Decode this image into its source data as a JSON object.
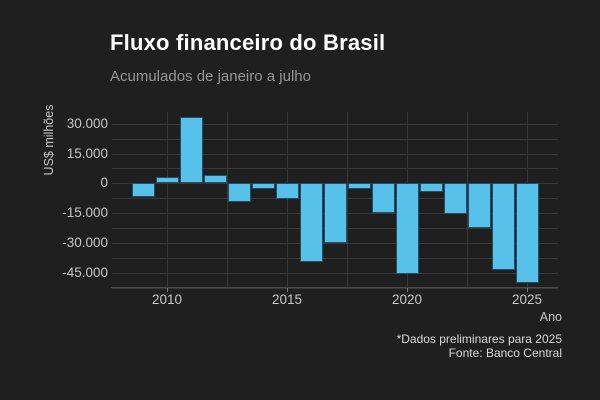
{
  "header": {
    "title": "Fluxo financeiro do Brasil",
    "subtitle": "Acumulados de janeiro a julho"
  },
  "footer": {
    "note": "*Dados preliminares para 2025",
    "source": "Fonte: Banco Central"
  },
  "chart_data": {
    "type": "bar",
    "title": "Fluxo financeiro do Brasil",
    "subtitle": "Acumulados de janeiro a julho",
    "xlabel": "Ano",
    "ylabel": "US$ milhões",
    "x": [
      2009,
      2010,
      2011,
      2012,
      2013,
      2014,
      2015,
      2016,
      2017,
      2018,
      2019,
      2020,
      2021,
      2022,
      2023,
      2024,
      2025
    ],
    "values": [
      -6700,
      3300,
      33500,
      4200,
      -9500,
      -3000,
      -8000,
      -39600,
      -30300,
      -3000,
      -14800,
      -45700,
      -4500,
      -15600,
      -22600,
      -43800,
      -50000
    ],
    "ylim": [
      -53000,
      36000
    ],
    "xlim": [
      2007.7,
      2026.3
    ],
    "yticks": {
      "values": [
        30000,
        15000,
        0,
        -15000,
        -30000,
        -45000
      ],
      "labels": [
        "30.000",
        "15.000",
        "0",
        "-15.000",
        "-30.000",
        "-45.000"
      ]
    },
    "xticks": {
      "values": [
        2010,
        2015,
        2020,
        2025
      ],
      "labels": [
        "2010",
        "2015",
        "2020",
        "2025"
      ]
    },
    "grid": {
      "on": true,
      "y_step": 7500,
      "x_step": 2.5,
      "legend": "none"
    },
    "colors": {
      "bar_fill": "#57C1EA",
      "background": "#1F1F1F",
      "gridline": "#383838",
      "tick_text": "#C7C7C7",
      "title_text": "#FFFFFF",
      "subtitle_text": "#969696"
    },
    "annotations": [
      "*Dados preliminares para 2025",
      "Fonte: Banco Central"
    ]
  }
}
